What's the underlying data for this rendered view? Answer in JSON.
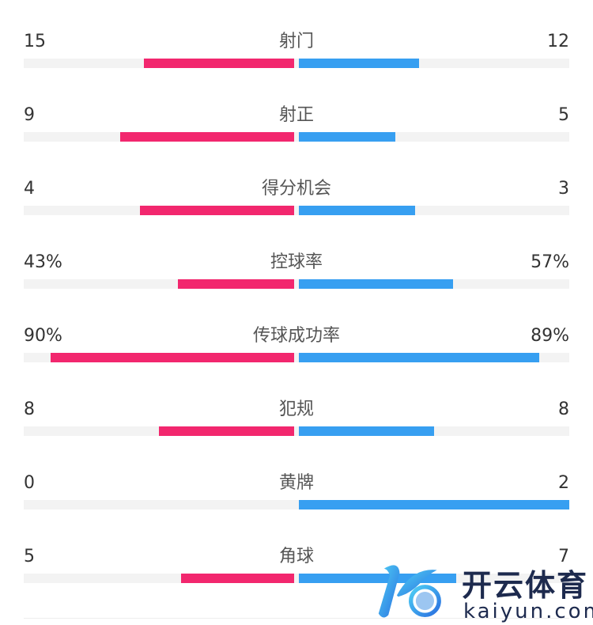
{
  "colors": {
    "home": "#f2276e",
    "away": "#379ff1",
    "track": "#f3f3f3"
  },
  "stats": [
    {
      "label": "射门",
      "home": "15",
      "away": "12",
      "home_fraction": 0.556,
      "away_fraction": 0.444
    },
    {
      "label": "射正",
      "home": "9",
      "away": "5",
      "home_fraction": 0.643,
      "away_fraction": 0.357
    },
    {
      "label": "得分机会",
      "home": "4",
      "away": "3",
      "home_fraction": 0.571,
      "away_fraction": 0.429
    },
    {
      "label": "控球率",
      "home": "43%",
      "away": "57%",
      "home_fraction": 0.43,
      "away_fraction": 0.57
    },
    {
      "label": "传球成功率",
      "home": "90%",
      "away": "89%",
      "home_fraction": 0.9,
      "away_fraction": 0.89
    },
    {
      "label": "犯规",
      "home": "8",
      "away": "8",
      "home_fraction": 0.5,
      "away_fraction": 0.5
    },
    {
      "label": "黄牌",
      "home": "0",
      "away": "2",
      "home_fraction": 0,
      "away_fraction": 1
    },
    {
      "label": "角球",
      "home": "5",
      "away": "7",
      "home_fraction": 0.417,
      "away_fraction": 0.583
    }
  ],
  "watermark": {
    "brand_cn": "开云体育",
    "brand_en": "kaiyun.com"
  }
}
